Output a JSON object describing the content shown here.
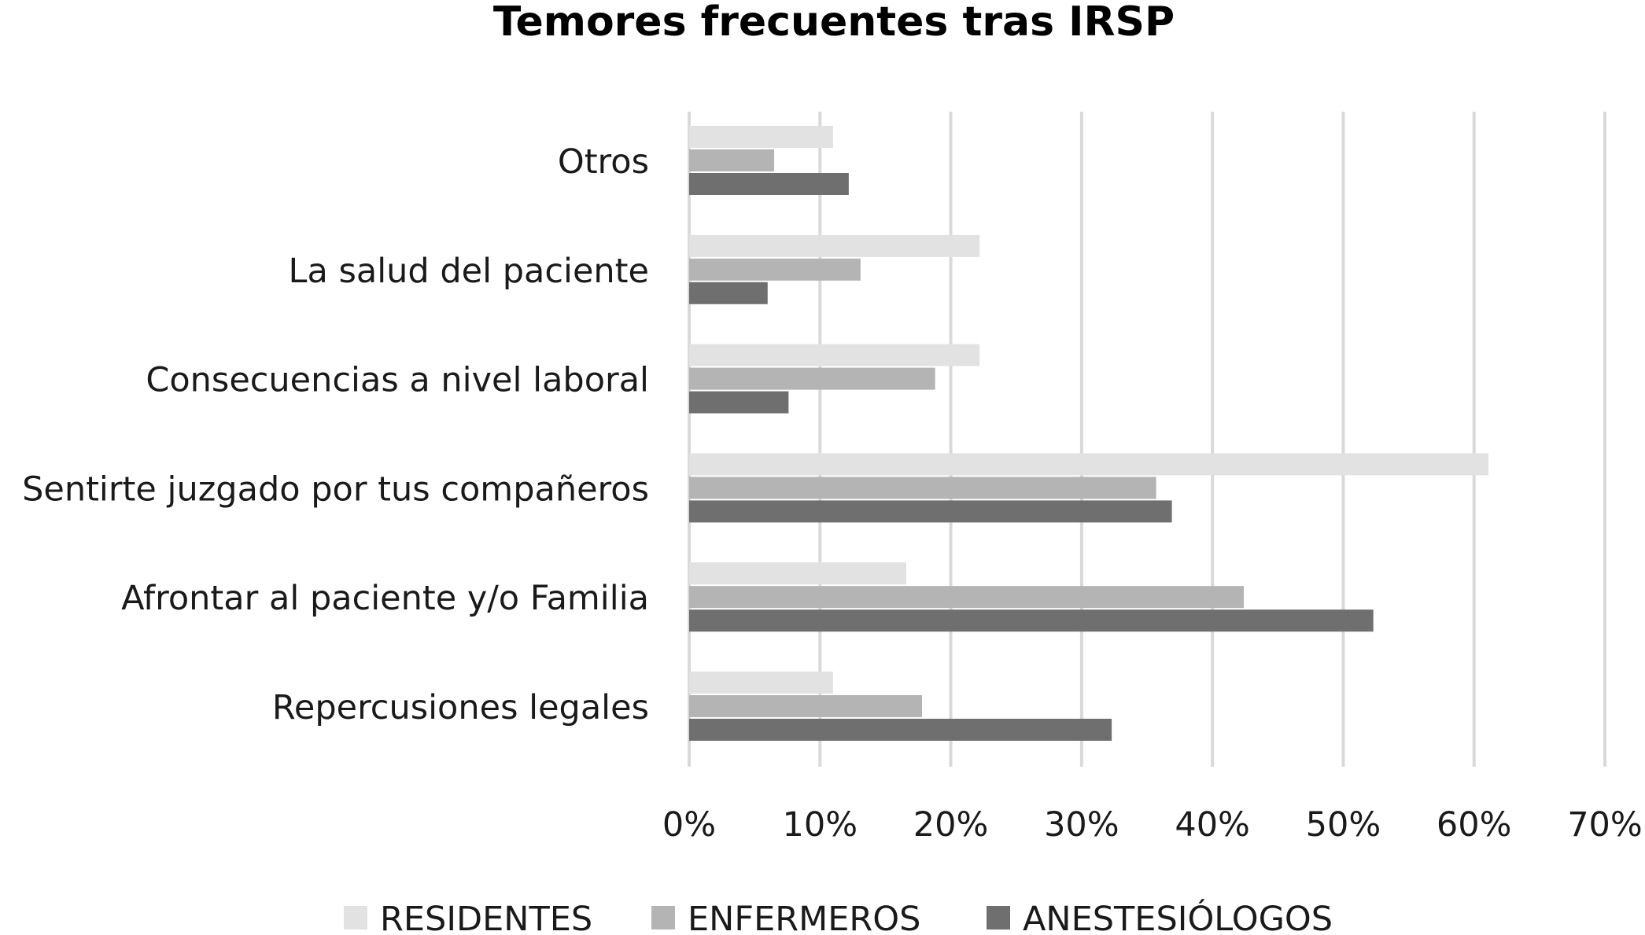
{
  "chart_data": {
    "type": "bar",
    "orientation": "horizontal",
    "title": "Temores frecuentes tras IRSP",
    "xlabel": "",
    "ylabel": "",
    "xlim": [
      0,
      70
    ],
    "x_ticks": [
      "0%",
      "10%",
      "20%",
      "30%",
      "40%",
      "50%",
      "60%",
      "70%"
    ],
    "x_tick_values": [
      0,
      10,
      20,
      30,
      40,
      50,
      60,
      70
    ],
    "grid": true,
    "legend_position": "bottom",
    "categories": [
      "Otros",
      "La salud del paciente",
      "Consecuencias a nivel laboral",
      "Sentirte juzgado por tus compañeros",
      "Afrontar al paciente y/o Familia",
      "Repercusiones legales"
    ],
    "series": [
      {
        "name": "RESIDENTES",
        "color": "#e2e2e2",
        "values": [
          11,
          22.2,
          22.2,
          61.1,
          16.6,
          11
        ]
      },
      {
        "name": "ENFERMEROS",
        "color": "#b4b4b4",
        "values": [
          6.5,
          13.1,
          18.8,
          35.7,
          42.4,
          17.8
        ]
      },
      {
        "name": "ANESTESIÓLOGOS",
        "color": "#6f6f6f",
        "values": [
          12.2,
          6,
          7.6,
          36.9,
          52.3,
          32.3
        ]
      }
    ]
  }
}
